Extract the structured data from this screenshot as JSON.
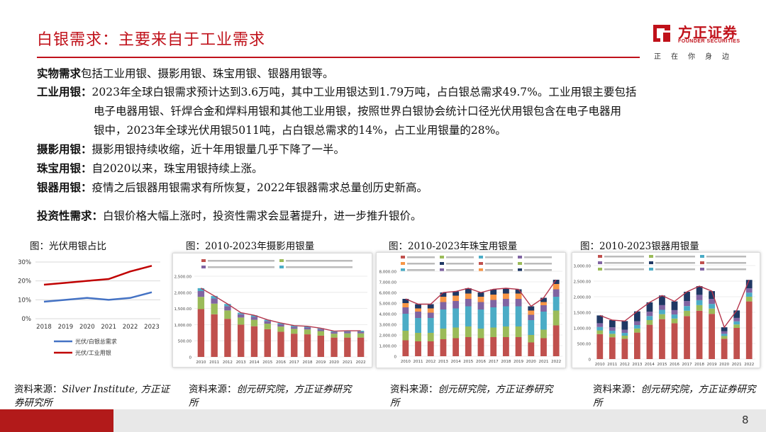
{
  "header": {
    "title": "白银需求：主要来自于工业需求",
    "logo_cn": "方正证券",
    "logo_en": "FOUNDER SECURITIES",
    "logo_slogan": "正在你身边",
    "accent_color": "#c0111a"
  },
  "body": {
    "p1": {
      "label": "实物需求",
      "text": "包括工业用银、摄影用银、珠宝用银、银器用银等。"
    },
    "p2": {
      "label": "工业用银：",
      "line1": "2023年全球白银需求预计达到3.6万吨，其中工业用银达到1.79万吨，占白银总需求49.7%。工业用银主要包括",
      "line2": "电子电器用银、钎焊合金和焊料用银和其他工业用银，按照世界白银协会统计口径光伏用银包含在电子电器用",
      "line3": "银中，2023年全球光伏用银5011吨，占白银总需求的14%，占工业用银量的28%。"
    },
    "p3": {
      "label": "摄影用银：",
      "text": "摄影用银持续收缩，近十年用银量几乎下降了一半。"
    },
    "p4": {
      "label": "珠宝用银：",
      "text": "自2020以来，珠宝用银持续上涨。"
    },
    "p5": {
      "label": "银器用银：",
      "text": "疫情之后银器用银需求有所恢复，2022年银器需求总量创历史新高。"
    },
    "p6": {
      "label": "投资性需求：",
      "text": "白银价格大幅上涨时，投资性需求会显著提升，进一步推升银价。"
    }
  },
  "figures": [
    {
      "title": "图：光伏用银占比",
      "source_label": "资料来源：",
      "source_text": "Silver Institute, 方正证券研究所"
    },
    {
      "title": "图：2010-2023年摄影用银量",
      "source_label": "资料来源：",
      "source_text": "创元研究院，方正证券研究所"
    },
    {
      "title": "图：2010-2023年珠宝用银量",
      "source_label": "资料来源：",
      "source_text": "创元研究院，方正证券研究所"
    },
    {
      "title": "图：2010-2023银器用银量",
      "source_label": "资料来源：",
      "source_text": "创元研究院，方正证券研究所"
    }
  ],
  "chart_data": [
    {
      "type": "line",
      "x": [
        "2018",
        "2019",
        "2020",
        "2021",
        "2022",
        "2023"
      ],
      "yticks": [
        "0%",
        "10%",
        "20%",
        "30%"
      ],
      "ylim": [
        0,
        30
      ],
      "grid": true,
      "legend_position": "bottom",
      "series": [
        {
          "name": "光伏/白银总需求",
          "color": "#4472c4",
          "values": [
            9,
            10,
            11,
            10,
            11,
            14
          ]
        },
        {
          "name": "光伏/工业用银",
          "color": "#c00000",
          "values": [
            18,
            19,
            20,
            21,
            25,
            28
          ]
        }
      ]
    },
    {
      "type": "bar",
      "stacked": true,
      "categories": [
        "2010",
        "2011",
        "2012",
        "2013",
        "2014",
        "2015",
        "2016",
        "2017",
        "2018",
        "2019",
        "2020",
        "2021",
        "2022"
      ],
      "yticks": [
        "0",
        "500.00",
        "1,000.00",
        "1,500.00",
        "2,000.00",
        "2,500.00"
      ],
      "ylim": [
        0,
        2500
      ],
      "total_line_color": "#b5364d",
      "series": [
        {
          "color": "#c0504d",
          "values": [
            1480,
            1320,
            1180,
            1000,
            950,
            860,
            780,
            720,
            700,
            660,
            600,
            600,
            600
          ]
        },
        {
          "color": "#9bbb59",
          "values": [
            380,
            330,
            260,
            220,
            200,
            170,
            160,
            150,
            150,
            140,
            120,
            130,
            130
          ]
        },
        {
          "color": "#8064a2",
          "values": [
            180,
            160,
            130,
            100,
            90,
            80,
            70,
            60,
            60,
            60,
            50,
            50,
            50
          ]
        },
        {
          "color": "#4bacc6",
          "values": [
            90,
            80,
            70,
            50,
            50,
            40,
            40,
            40,
            40,
            30,
            30,
            30,
            30
          ]
        }
      ]
    },
    {
      "type": "bar",
      "stacked": true,
      "categories": [
        "2010",
        "2011",
        "2012",
        "2013",
        "2014",
        "2015",
        "2016",
        "2017",
        "2018",
        "2019",
        "2020",
        "2021",
        "2022"
      ],
      "yticks": [
        "0",
        "1,000.00",
        "2,000.00",
        "3,000.00",
        "4,000.00",
        "5,000.00",
        "6,000.00",
        "7,000.00",
        "8,000.00"
      ],
      "ylim": [
        0,
        8000
      ],
      "total_line_color": "#b5364d",
      "series": [
        {
          "color": "#c0504d",
          "values": [
            1500,
            1400,
            1400,
            1600,
            1700,
            1800,
            1700,
            1800,
            1800,
            1800,
            1300,
            1700,
            2900
          ]
        },
        {
          "color": "#9bbb59",
          "values": [
            900,
            800,
            800,
            1000,
            1000,
            1000,
            900,
            900,
            1000,
            1000,
            700,
            800,
            1400
          ]
        },
        {
          "color": "#4bacc6",
          "values": [
            1600,
            1400,
            1400,
            1800,
            1800,
            1900,
            1800,
            1900,
            1900,
            1900,
            1400,
            1700,
            1300
          ]
        },
        {
          "color": "#8064a2",
          "values": [
            600,
            600,
            500,
            700,
            700,
            700,
            700,
            700,
            700,
            700,
            500,
            600,
            700
          ]
        },
        {
          "color": "#f79646",
          "values": [
            400,
            300,
            400,
            500,
            500,
            500,
            500,
            500,
            500,
            500,
            400,
            300,
            500
          ]
        },
        {
          "color": "#1f3864",
          "values": [
            400,
            400,
            400,
            400,
            400,
            500,
            400,
            500,
            500,
            400,
            400,
            400,
            400
          ]
        }
      ]
    },
    {
      "type": "bar",
      "stacked": true,
      "categories": [
        "2010",
        "2011",
        "2012",
        "2013",
        "2014",
        "2015",
        "2016",
        "2017",
        "2018",
        "2019",
        "2020",
        "2021",
        "2022"
      ],
      "yticks": [
        "0",
        "500.00",
        "1,000.00",
        "1,500.00",
        "2,000.00",
        "2,500.00",
        "3,000.00"
      ],
      "ylim": [
        0,
        3000
      ],
      "total_line_color": "#b5364d",
      "series": [
        {
          "color": "#c0504d",
          "values": [
            800,
            700,
            650,
            850,
            1100,
            1280,
            1150,
            1380,
            1550,
            1450,
            650,
            1000,
            1850
          ]
        },
        {
          "color": "#9bbb59",
          "values": [
            120,
            110,
            100,
            130,
            150,
            160,
            150,
            170,
            180,
            170,
            90,
            110,
            150
          ]
        },
        {
          "color": "#4bacc6",
          "values": [
            110,
            100,
            90,
            110,
            130,
            140,
            130,
            150,
            160,
            150,
            70,
            100,
            130
          ]
        },
        {
          "color": "#8064a2",
          "values": [
            120,
            110,
            100,
            120,
            140,
            150,
            140,
            160,
            170,
            160,
            80,
            110,
            140
          ]
        },
        {
          "color": "#1f3864",
          "values": [
            250,
            230,
            280,
            320,
            300,
            310,
            280,
            300,
            280,
            250,
            130,
            240,
            270
          ]
        }
      ]
    }
  ]
}
